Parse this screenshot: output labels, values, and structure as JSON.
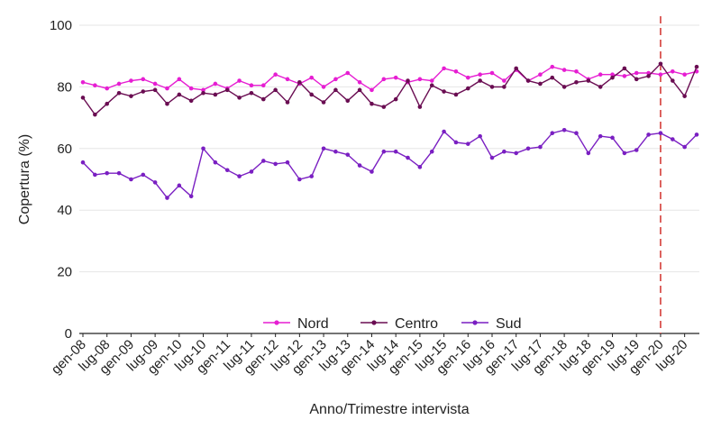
{
  "chart_data": {
    "type": "line",
    "xlabel": "Anno/Trimestre intervista",
    "ylabel": "Copertura (%)",
    "ylim": [
      0,
      100
    ],
    "yticks": [
      0,
      20,
      40,
      60,
      80,
      100
    ],
    "grid": "horizontal",
    "legend": "bottom-center",
    "x": [
      "gen-08",
      "apr-08",
      "lug-08",
      "ott-08",
      "gen-09",
      "apr-09",
      "lug-09",
      "ott-09",
      "gen-10",
      "apr-10",
      "lug-10",
      "ott-10",
      "gen-11",
      "apr-11",
      "lug-11",
      "ott-11",
      "gen-12",
      "apr-12",
      "lug-12",
      "ott-12",
      "gen-13",
      "apr-13",
      "lug-13",
      "ott-13",
      "gen-14",
      "apr-14",
      "lug-14",
      "ott-14",
      "gen-15",
      "apr-15",
      "lug-15",
      "ott-15",
      "gen-16",
      "apr-16",
      "lug-16",
      "ott-16",
      "gen-17",
      "apr-17",
      "lug-17",
      "ott-17",
      "gen-18",
      "apr-18",
      "lug-18",
      "ott-18",
      "gen-19",
      "apr-19",
      "lug-19",
      "ott-19",
      "gen-20",
      "apr-20",
      "lug-20",
      "ott-20"
    ],
    "xtick_labels": [
      "gen-08",
      "lug-08",
      "gen-09",
      "lug-09",
      "gen-10",
      "lug-10",
      "gen-11",
      "lug-11",
      "gen-12",
      "lug-12",
      "gen-13",
      "lug-13",
      "gen-14",
      "lug-14",
      "gen-15",
      "lug-15",
      "gen-16",
      "lug-16",
      "gen-17",
      "lug-17",
      "gen-18",
      "lug-18",
      "gen-19",
      "lug-19",
      "gen-20",
      "lug-20"
    ],
    "reference_line": {
      "x": "gen-20",
      "color": "#d9534f"
    },
    "series": [
      {
        "name": "Nord",
        "color": "#e61ed2",
        "values": [
          81.5,
          80.5,
          79.5,
          81,
          82,
          82.5,
          81,
          79.5,
          82.5,
          79.5,
          79,
          81,
          79.5,
          82,
          80.5,
          80.5,
          84,
          82.5,
          81,
          83,
          80,
          82.5,
          84.5,
          81.5,
          79,
          82.5,
          83,
          81.5,
          82.5,
          82,
          86,
          85,
          83,
          84,
          84.5,
          82,
          85.5,
          82,
          84,
          86.5,
          85.5,
          85,
          82.5,
          84,
          84,
          83.5,
          84.5,
          84.5,
          84,
          85,
          84,
          85
        ]
      },
      {
        "name": "Centro",
        "color": "#6a0d52",
        "values": [
          76.5,
          71,
          74.5,
          78,
          77,
          78.5,
          79,
          74.5,
          77.5,
          75.5,
          78,
          77.5,
          79,
          76.5,
          78,
          76,
          79,
          75,
          81.5,
          77.5,
          75,
          79,
          75.5,
          79,
          74.5,
          73.5,
          76,
          82,
          73.5,
          80.5,
          78.5,
          77.5,
          79.5,
          82,
          80,
          80,
          86,
          82,
          81,
          83,
          80,
          81.5,
          82,
          80,
          83,
          86,
          82.5,
          83.5,
          87.5,
          82,
          77,
          86.5
        ]
      },
      {
        "name": "Sud",
        "color": "#7a1fc2",
        "values": [
          55.5,
          51.5,
          52,
          52,
          50,
          51.5,
          49,
          44,
          48,
          44.5,
          60,
          55.5,
          53,
          51,
          52.5,
          56,
          55,
          55.5,
          50,
          51,
          60,
          59,
          58,
          54.5,
          52.5,
          59,
          59,
          57,
          54,
          59,
          65.5,
          62,
          61.5,
          64,
          57,
          59,
          58.5,
          60,
          60.5,
          65,
          66,
          65,
          58.5,
          64,
          63.5,
          58.5,
          59.5,
          64.5,
          65,
          63,
          60.5,
          64.5
        ]
      }
    ]
  }
}
